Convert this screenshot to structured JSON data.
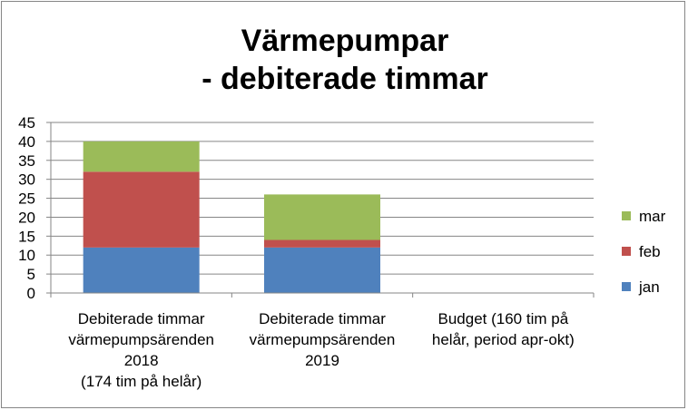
{
  "chart_data": {
    "type": "bar",
    "stacked": true,
    "title": [
      "Värmepumpar",
      "- debiterade timmar"
    ],
    "categories": [
      [
        "Debiterade timmar",
        "värmepumpsärenden",
        "2018",
        "(174 tim på helår)"
      ],
      [
        "Debiterade timmar",
        "värmepumpsärenden",
        "2019"
      ],
      [
        "Budget (160 tim på",
        "helår, period apr-okt)"
      ]
    ],
    "series": [
      {
        "name": "jan",
        "color": "#4F81BD",
        "values": [
          12,
          12,
          0
        ]
      },
      {
        "name": "feb",
        "color": "#C0504D",
        "values": [
          20,
          2,
          0
        ]
      },
      {
        "name": "mar",
        "color": "#9BBB59",
        "values": [
          8,
          12,
          0
        ]
      }
    ],
    "ylim": [
      0,
      45
    ],
    "yticks": [
      "0",
      "5",
      "10",
      "15",
      "20",
      "25",
      "30",
      "35",
      "40",
      "45"
    ],
    "grid": true,
    "legend_position": "right"
  }
}
